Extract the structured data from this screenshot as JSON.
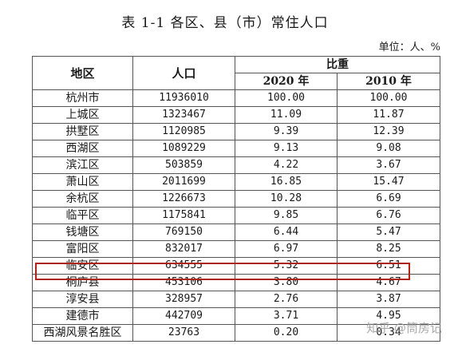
{
  "title": "表 1-1  各区、县（市）常住人口",
  "unit": "单位：人、%",
  "headers": {
    "region": "地区",
    "population": "人口",
    "ratio": "比重",
    "y2020": "2020 年",
    "y2010": "2010 年"
  },
  "rows": [
    {
      "region": "杭州市",
      "population": "11936010",
      "y2020": "100.00",
      "y2010": "100.00"
    },
    {
      "region": "上城区",
      "population": "1323467",
      "y2020": "11.09",
      "y2010": "11.87"
    },
    {
      "region": "拱墅区",
      "population": "1120985",
      "y2020": "9.39",
      "y2010": "12.39"
    },
    {
      "region": "西湖区",
      "population": "1089229",
      "y2020": "9.13",
      "y2010": "9.08"
    },
    {
      "region": "滨江区",
      "population": "503859",
      "y2020": "4.22",
      "y2010": "3.67"
    },
    {
      "region": "萧山区",
      "population": "2011699",
      "y2020": "16.85",
      "y2010": "15.47"
    },
    {
      "region": "余杭区",
      "population": "1226673",
      "y2020": "10.28",
      "y2010": "6.69"
    },
    {
      "region": "临平区",
      "population": "1175841",
      "y2020": "9.85",
      "y2010": "6.76"
    },
    {
      "region": "钱塘区",
      "population": "769150",
      "y2020": "6.44",
      "y2010": "5.47"
    },
    {
      "region": "富阳区",
      "population": "832017",
      "y2020": "6.97",
      "y2010": "8.25"
    },
    {
      "region": "临安区",
      "population": "634555",
      "y2020": "5.32",
      "y2010": "6.51"
    },
    {
      "region": "桐庐县",
      "population": "453106",
      "y2020": "3.80",
      "y2010": "4.67"
    },
    {
      "region": "淳安县",
      "population": "328957",
      "y2020": "2.76",
      "y2010": "3.87"
    },
    {
      "region": "建德市",
      "population": "442709",
      "y2020": "3.71",
      "y2010": "4.95"
    },
    {
      "region": "西湖风景名胜区",
      "population": "23763",
      "y2020": "0.20",
      "y2010": "0.34"
    }
  ],
  "highlight_color": "#b02418",
  "watermark": "知乎 @筒房记"
}
